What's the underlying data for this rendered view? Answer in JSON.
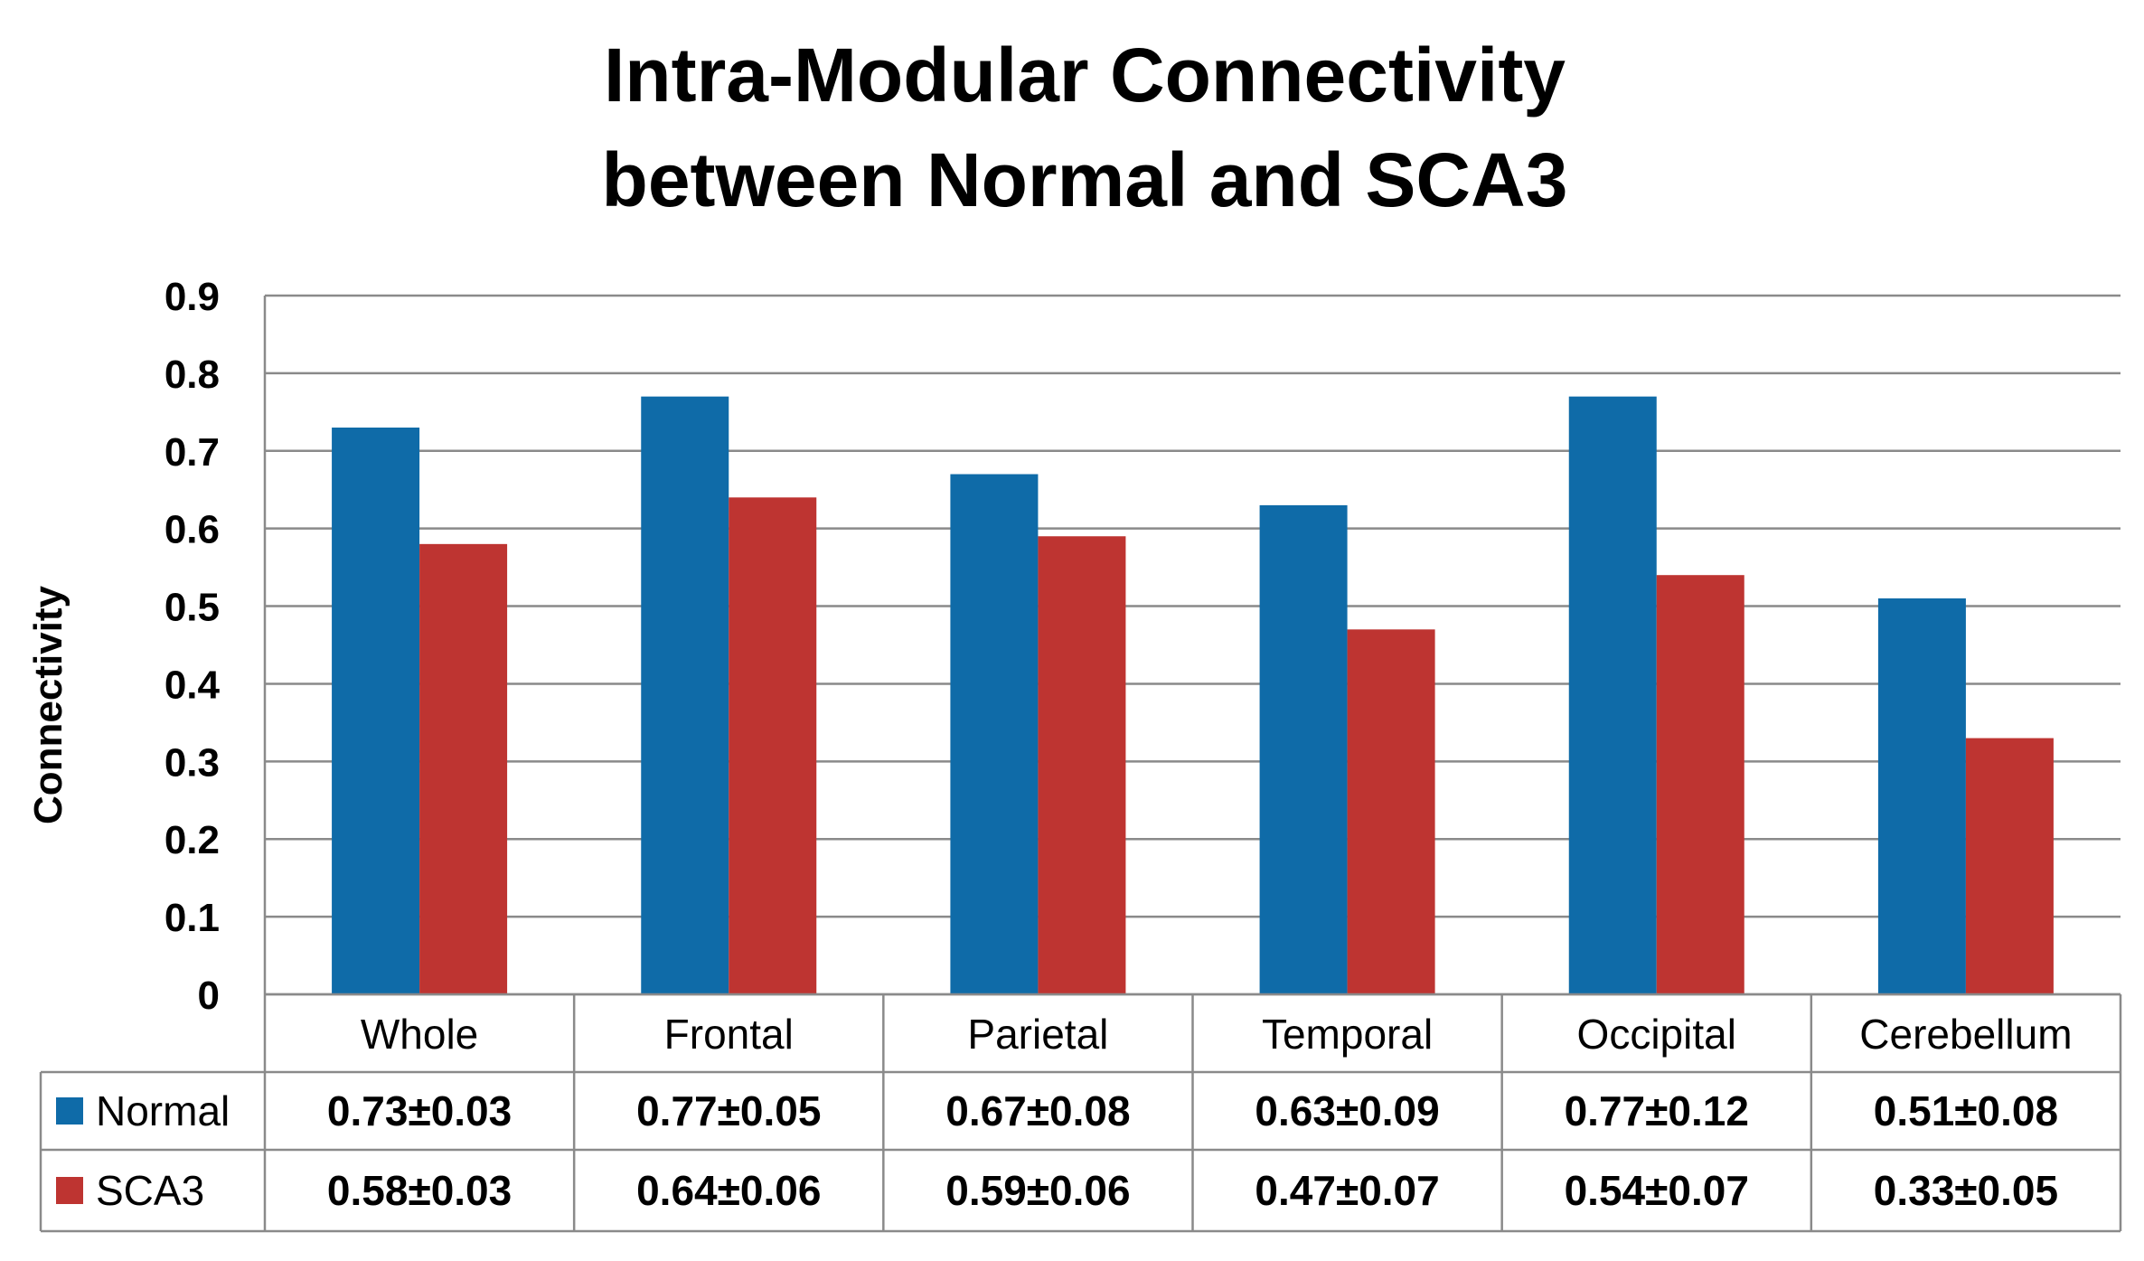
{
  "chart_data": {
    "type": "bar",
    "title_lines": [
      "Intra-Modular Connectivity",
      "between Normal and SCA3"
    ],
    "xlabel": "",
    "ylabel": "Connectivity",
    "ylim": [
      0,
      0.9
    ],
    "yticks": [
      "0",
      "0.1",
      "0.2",
      "0.3",
      "0.4",
      "0.5",
      "0.6",
      "0.7",
      "0.8",
      "0.9"
    ],
    "ytick_values": [
      0,
      0.1,
      0.2,
      0.3,
      0.4,
      0.5,
      0.6,
      0.7,
      0.8,
      0.9
    ],
    "grid": true,
    "categories": [
      "Whole",
      "Frontal",
      "Parietal",
      "Temporal",
      "Occipital",
      "Cerebellum"
    ],
    "series": [
      {
        "name": "Normal",
        "color": "#0F6BA8",
        "values": [
          0.73,
          0.77,
          0.67,
          0.63,
          0.77,
          0.51
        ],
        "labels": [
          "0.73±0.03",
          "0.77±0.05",
          "0.67±0.08",
          "0.63±0.09",
          "0.77±0.12",
          "0.51±0.08"
        ]
      },
      {
        "name": "SCA3",
        "color": "#BE3431",
        "values": [
          0.58,
          0.64,
          0.59,
          0.47,
          0.54,
          0.33
        ],
        "labels": [
          "0.58±0.03",
          "0.64±0.06",
          "0.59±0.06",
          "0.47±0.07",
          "0.54±0.07",
          "0.33±0.05"
        ]
      }
    ],
    "table_below": true
  }
}
